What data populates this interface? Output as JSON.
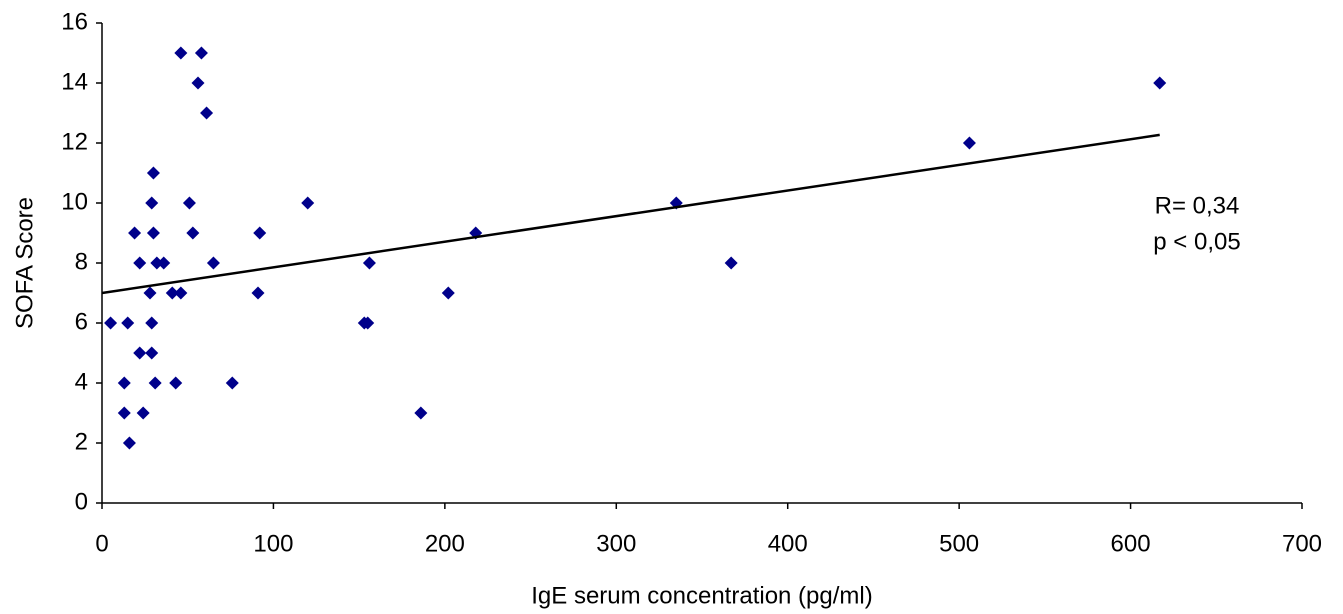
{
  "chart_data": {
    "type": "scatter",
    "x_label": "IgE serum concentration (pg/ml)",
    "y_label": "SOFA Score",
    "annotations": [
      "R= 0,34",
      "p < 0,05"
    ],
    "series": [
      {
        "color": "#00008b",
        "x": [
          5,
          15,
          13,
          13,
          16,
          19,
          22,
          22,
          24,
          28,
          29,
          30,
          29,
          29,
          30,
          31,
          32,
          36,
          41,
          43,
          46,
          46,
          51,
          53,
          56,
          58,
          61,
          65,
          76,
          91,
          92,
          120,
          153,
          155,
          156,
          186,
          202,
          218,
          335,
          367,
          506,
          617
        ],
        "values": [
          6,
          6,
          4,
          3,
          2,
          9,
          8,
          5,
          3,
          7,
          10,
          11,
          6,
          5,
          9,
          4,
          8,
          8,
          7,
          4,
          7,
          15,
          10,
          9,
          14,
          15,
          13,
          8,
          4,
          7,
          9,
          10,
          6,
          6,
          8,
          3,
          7,
          9,
          10,
          8,
          12,
          14
        ]
      }
    ],
    "trendline": {
      "color": "#000000",
      "x": [
        0,
        617
      ],
      "values": [
        7.0,
        12.27
      ]
    },
    "xlim": [
      0,
      700
    ],
    "xticks": [
      0,
      100,
      200,
      300,
      400,
      500,
      600,
      700
    ],
    "ylim": [
      0,
      16
    ],
    "yticks": [
      0,
      2,
      4,
      6,
      8,
      10,
      12,
      14,
      16
    ],
    "grid": false
  }
}
